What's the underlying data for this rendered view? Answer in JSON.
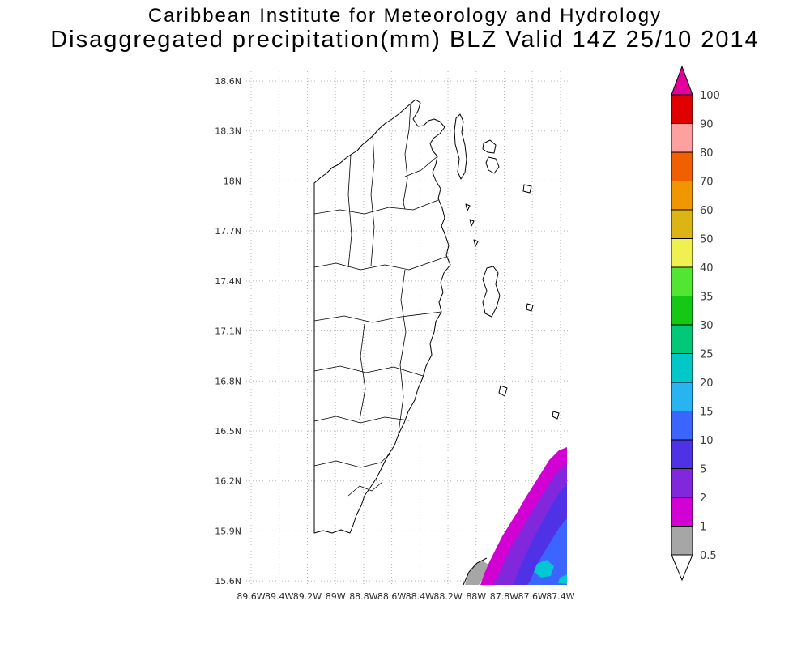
{
  "title": {
    "line1": "Caribbean Institute for Meteorology and Hydrology",
    "line2": "Disaggregated precipitation(mm) BLZ Valid 14Z 25/10 2014"
  },
  "chart_data": {
    "type": "heatmap",
    "description": "Disaggregated precipitation (mm) over Belize and adjacent ocean",
    "region": "BLZ",
    "valid": "14Z 25/10 2014",
    "units": "mm",
    "lat_ticks": [
      "18.6N",
      "18.3N",
      "18N",
      "17.7N",
      "17.4N",
      "17.1N",
      "16.8N",
      "16.5N",
      "16.2N",
      "15.9N",
      "15.6N"
    ],
    "lon_ticks": [
      "89.6W",
      "89.4W",
      "89.2W",
      "89W",
      "88.8W",
      "88.6W",
      "88.4W",
      "88.2W",
      "88W",
      "87.8W",
      "87.6W",
      "87.4W"
    ],
    "legend": {
      "values": [
        "100",
        "90",
        "80",
        "70",
        "60",
        "50",
        "40",
        "35",
        "30",
        "25",
        "20",
        "15",
        "10",
        "5",
        "2",
        "1",
        "0.5"
      ],
      "segment_colors_top_to_bottom": [
        "#e10000",
        "#ffa0a0",
        "#f06000",
        "#f09600",
        "#dcb414",
        "#f0f050",
        "#50e632",
        "#14c814",
        "#00c878",
        "#00c8c8",
        "#28b4f0",
        "#3c64ff",
        "#5032e6",
        "#8228dc",
        "#d200d2",
        "#a6a6a6"
      ],
      "over_color": "#e1009b",
      "under_color": "#ffffff"
    },
    "palette": {
      "grid": "#b4b4b4",
      "outline": "#000000",
      "shade_gray": "#a6a6a6",
      "shade_magenta": "#d200d2",
      "shade_purple": "#8228dc",
      "shade_blue_violet": "#5032e6",
      "shade_blue": "#3c64ff",
      "shade_cyan": "#00c8d2"
    }
  }
}
